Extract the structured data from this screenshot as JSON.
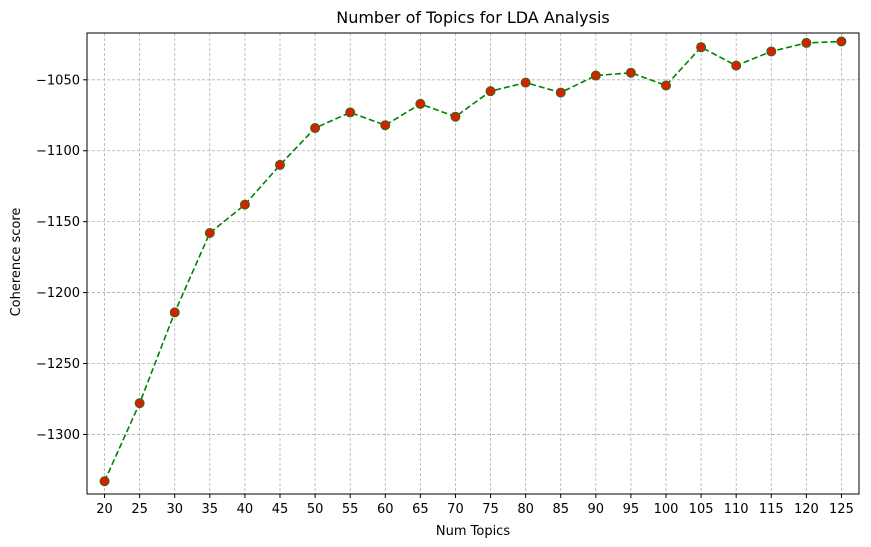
{
  "colors": {
    "line": "#008000",
    "marker_face": "#d62000",
    "marker_edge": "#2e6b1c",
    "grid": "#b0b0b0",
    "axis": "#000000"
  },
  "chart_data": {
    "type": "line",
    "title": "Number of Topics for LDA Analysis",
    "xlabel": "Num Topics",
    "ylabel": "Coherence score",
    "x": [
      20,
      25,
      30,
      35,
      40,
      45,
      50,
      55,
      60,
      65,
      70,
      75,
      80,
      85,
      90,
      95,
      100,
      105,
      110,
      115,
      120,
      125
    ],
    "x_tick_labels": [
      "20",
      "25",
      "30",
      "35",
      "40",
      "45",
      "50",
      "55",
      "60",
      "65",
      "70",
      "75",
      "80",
      "85",
      "90",
      "95",
      "100",
      "105",
      "110",
      "115",
      "120",
      "125"
    ],
    "series": [
      {
        "values": [
          -1333,
          -1278,
          -1214,
          -1158,
          -1138,
          -1110,
          -1084,
          -1073,
          -1082,
          -1067,
          -1076,
          -1058,
          -1052,
          -1059,
          -1047,
          -1045,
          -1054,
          -1027,
          -1040,
          -1030,
          -1024,
          -1023
        ]
      }
    ],
    "y_ticks": [
      -1300,
      -1250,
      -1200,
      -1150,
      -1100,
      -1050
    ],
    "y_tick_labels": [
      "−1300",
      "−1250",
      "−1200",
      "−1150",
      "−1100",
      "−1050"
    ],
    "xlim": [
      17.5,
      127.5
    ],
    "ylim": [
      -1342,
      -1017
    ],
    "line_style": "dashed",
    "marker": "circle",
    "grid": true
  }
}
